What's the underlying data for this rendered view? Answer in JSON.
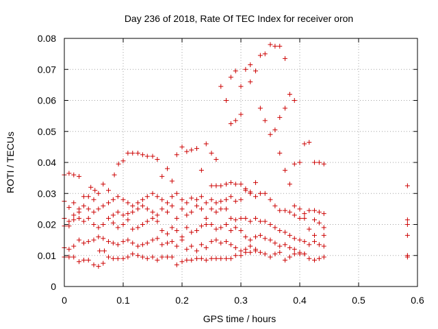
{
  "chart_data": {
    "type": "scatter",
    "title": "Day 236 of 2018, Rate Of TEC Index for receiver oron",
    "xlabel": "GPS time / hours",
    "ylabel": "ROTI / TECUs",
    "xlim": [
      0,
      0.6
    ],
    "ylim": [
      0,
      0.08
    ],
    "grid": true,
    "marker": "plus",
    "color": "#cc0000",
    "x_ticks": [
      "0",
      "0.1",
      "0.2",
      "0.3",
      "0.4",
      "0.5",
      "0.6"
    ],
    "y_ticks": [
      "0",
      "0.01",
      "0.02",
      "0.03",
      "0.04",
      "0.05",
      "0.06",
      "0.07",
      "0.08"
    ],
    "points": [
      [
        0.0,
        0.036
      ],
      [
        0.008,
        0.0365
      ],
      [
        0.016,
        0.036
      ],
      [
        0.025,
        0.0355
      ],
      [
        0.0,
        0.0275
      ],
      [
        0.008,
        0.0255
      ],
      [
        0.016,
        0.027
      ],
      [
        0.025,
        0.025
      ],
      [
        0.033,
        0.029
      ],
      [
        0.041,
        0.029
      ],
      [
        0.05,
        0.028
      ],
      [
        0.058,
        0.03
      ],
      [
        0.066,
        0.033
      ],
      [
        0.075,
        0.031
      ],
      [
        0.0,
        0.022
      ],
      [
        0.008,
        0.021
      ],
      [
        0.016,
        0.023
      ],
      [
        0.025,
        0.022
      ],
      [
        0.033,
        0.021
      ],
      [
        0.041,
        0.022
      ],
      [
        0.05,
        0.02
      ],
      [
        0.058,
        0.019
      ],
      [
        0.066,
        0.02
      ],
      [
        0.075,
        0.022
      ],
      [
        0.0,
        0.0195
      ],
      [
        0.008,
        0.0195
      ],
      [
        0.016,
        0.0215
      ],
      [
        0.025,
        0.024
      ],
      [
        0.033,
        0.026
      ],
      [
        0.041,
        0.025
      ],
      [
        0.05,
        0.024
      ],
      [
        0.058,
        0.025
      ],
      [
        0.066,
        0.026
      ],
      [
        0.075,
        0.027
      ],
      [
        0.0,
        0.0125
      ],
      [
        0.008,
        0.012
      ],
      [
        0.016,
        0.013
      ],
      [
        0.025,
        0.015
      ],
      [
        0.033,
        0.014
      ],
      [
        0.041,
        0.0145
      ],
      [
        0.05,
        0.015
      ],
      [
        0.058,
        0.016
      ],
      [
        0.066,
        0.0155
      ],
      [
        0.075,
        0.0145
      ],
      [
        0.0,
        0.0095
      ],
      [
        0.008,
        0.0095
      ],
      [
        0.016,
        0.0095
      ],
      [
        0.025,
        0.008
      ],
      [
        0.033,
        0.0085
      ],
      [
        0.041,
        0.0085
      ],
      [
        0.05,
        0.007
      ],
      [
        0.058,
        0.0065
      ],
      [
        0.066,
        0.0075
      ],
      [
        0.075,
        0.0095
      ],
      [
        0.045,
        0.032
      ],
      [
        0.052,
        0.031
      ],
      [
        0.06,
        0.0115
      ],
      [
        0.068,
        0.0115
      ],
      [
        0.085,
        0.036
      ],
      [
        0.092,
        0.0395
      ],
      [
        0.1,
        0.0405
      ],
      [
        0.108,
        0.043
      ],
      [
        0.116,
        0.043
      ],
      [
        0.125,
        0.043
      ],
      [
        0.133,
        0.0425
      ],
      [
        0.141,
        0.042
      ],
      [
        0.15,
        0.042
      ],
      [
        0.158,
        0.041
      ],
      [
        0.083,
        0.028
      ],
      [
        0.091,
        0.029
      ],
      [
        0.1,
        0.028
      ],
      [
        0.108,
        0.027
      ],
      [
        0.116,
        0.026
      ],
      [
        0.125,
        0.027
      ],
      [
        0.133,
        0.028
      ],
      [
        0.141,
        0.029
      ],
      [
        0.15,
        0.03
      ],
      [
        0.158,
        0.029
      ],
      [
        0.083,
        0.023
      ],
      [
        0.091,
        0.024
      ],
      [
        0.1,
        0.023
      ],
      [
        0.108,
        0.0235
      ],
      [
        0.116,
        0.024
      ],
      [
        0.125,
        0.025
      ],
      [
        0.133,
        0.026
      ],
      [
        0.141,
        0.025
      ],
      [
        0.15,
        0.024
      ],
      [
        0.158,
        0.023
      ],
      [
        0.083,
        0.0205
      ],
      [
        0.091,
        0.019
      ],
      [
        0.1,
        0.02
      ],
      [
        0.108,
        0.0215
      ],
      [
        0.116,
        0.0185
      ],
      [
        0.125,
        0.019
      ],
      [
        0.133,
        0.02
      ],
      [
        0.141,
        0.021
      ],
      [
        0.15,
        0.022
      ],
      [
        0.158,
        0.021
      ],
      [
        0.083,
        0.014
      ],
      [
        0.091,
        0.0135
      ],
      [
        0.1,
        0.0145
      ],
      [
        0.108,
        0.015
      ],
      [
        0.116,
        0.014
      ],
      [
        0.125,
        0.013
      ],
      [
        0.133,
        0.0135
      ],
      [
        0.141,
        0.014
      ],
      [
        0.15,
        0.015
      ],
      [
        0.158,
        0.0155
      ],
      [
        0.083,
        0.009
      ],
      [
        0.091,
        0.009
      ],
      [
        0.1,
        0.009
      ],
      [
        0.108,
        0.0095
      ],
      [
        0.116,
        0.0105
      ],
      [
        0.125,
        0.01
      ],
      [
        0.133,
        0.0095
      ],
      [
        0.141,
        0.009
      ],
      [
        0.15,
        0.0095
      ],
      [
        0.158,
        0.0085
      ],
      [
        0.166,
        0.0355
      ],
      [
        0.175,
        0.038
      ],
      [
        0.183,
        0.034
      ],
      [
        0.191,
        0.0425
      ],
      [
        0.2,
        0.045
      ],
      [
        0.208,
        0.0435
      ],
      [
        0.216,
        0.044
      ],
      [
        0.225,
        0.0445
      ],
      [
        0.233,
        0.0375
      ],
      [
        0.241,
        0.046
      ],
      [
        0.166,
        0.028
      ],
      [
        0.175,
        0.027
      ],
      [
        0.183,
        0.029
      ],
      [
        0.191,
        0.03
      ],
      [
        0.2,
        0.028
      ],
      [
        0.208,
        0.027
      ],
      [
        0.216,
        0.0285
      ],
      [
        0.225,
        0.028
      ],
      [
        0.233,
        0.029
      ],
      [
        0.241,
        0.027
      ],
      [
        0.166,
        0.025
      ],
      [
        0.175,
        0.024
      ],
      [
        0.183,
        0.026
      ],
      [
        0.191,
        0.022
      ],
      [
        0.2,
        0.025
      ],
      [
        0.208,
        0.023
      ],
      [
        0.216,
        0.024
      ],
      [
        0.225,
        0.026
      ],
      [
        0.233,
        0.025
      ],
      [
        0.241,
        0.022
      ],
      [
        0.166,
        0.018
      ],
      [
        0.175,
        0.017
      ],
      [
        0.183,
        0.019
      ],
      [
        0.191,
        0.018
      ],
      [
        0.2,
        0.016
      ],
      [
        0.208,
        0.019
      ],
      [
        0.216,
        0.0175
      ],
      [
        0.225,
        0.018
      ],
      [
        0.233,
        0.0195
      ],
      [
        0.241,
        0.02
      ],
      [
        0.166,
        0.0135
      ],
      [
        0.175,
        0.014
      ],
      [
        0.183,
        0.0145
      ],
      [
        0.191,
        0.013
      ],
      [
        0.2,
        0.015
      ],
      [
        0.208,
        0.012
      ],
      [
        0.216,
        0.013
      ],
      [
        0.225,
        0.0115
      ],
      [
        0.233,
        0.0135
      ],
      [
        0.241,
        0.0125
      ],
      [
        0.166,
        0.0095
      ],
      [
        0.175,
        0.0095
      ],
      [
        0.183,
        0.0095
      ],
      [
        0.191,
        0.007
      ],
      [
        0.2,
        0.008
      ],
      [
        0.208,
        0.0085
      ],
      [
        0.216,
        0.0085
      ],
      [
        0.225,
        0.009
      ],
      [
        0.233,
        0.009
      ],
      [
        0.241,
        0.0085
      ],
      [
        0.25,
        0.043
      ],
      [
        0.258,
        0.041
      ],
      [
        0.266,
        0.0645
      ],
      [
        0.275,
        0.06
      ],
      [
        0.283,
        0.0675
      ],
      [
        0.291,
        0.0695
      ],
      [
        0.3,
        0.0645
      ],
      [
        0.308,
        0.07
      ],
      [
        0.316,
        0.0715
      ],
      [
        0.325,
        0.0695
      ],
      [
        0.283,
        0.0525
      ],
      [
        0.291,
        0.0535
      ],
      [
        0.3,
        0.0555
      ],
      [
        0.316,
        0.066
      ],
      [
        0.333,
        0.0745
      ],
      [
        0.341,
        0.075
      ],
      [
        0.35,
        0.078
      ],
      [
        0.358,
        0.0775
      ],
      [
        0.366,
        0.0775
      ],
      [
        0.375,
        0.0735
      ],
      [
        0.383,
        0.062
      ],
      [
        0.391,
        0.06
      ],
      [
        0.375,
        0.0575
      ],
      [
        0.366,
        0.0545
      ],
      [
        0.358,
        0.0505
      ],
      [
        0.35,
        0.049
      ],
      [
        0.341,
        0.0535
      ],
      [
        0.333,
        0.0575
      ],
      [
        0.25,
        0.0325
      ],
      [
        0.258,
        0.0325
      ],
      [
        0.266,
        0.0325
      ],
      [
        0.275,
        0.033
      ],
      [
        0.283,
        0.0335
      ],
      [
        0.291,
        0.033
      ],
      [
        0.3,
        0.033
      ],
      [
        0.308,
        0.0315
      ],
      [
        0.316,
        0.03
      ],
      [
        0.325,
        0.0335
      ],
      [
        0.25,
        0.028
      ],
      [
        0.258,
        0.027
      ],
      [
        0.266,
        0.0275
      ],
      [
        0.275,
        0.028
      ],
      [
        0.283,
        0.029
      ],
      [
        0.291,
        0.0275
      ],
      [
        0.3,
        0.028
      ],
      [
        0.308,
        0.031
      ],
      [
        0.316,
        0.0305
      ],
      [
        0.325,
        0.029
      ],
      [
        0.25,
        0.025
      ],
      [
        0.258,
        0.024
      ],
      [
        0.266,
        0.025
      ],
      [
        0.275,
        0.025
      ],
      [
        0.283,
        0.022
      ],
      [
        0.291,
        0.0215
      ],
      [
        0.3,
        0.022
      ],
      [
        0.308,
        0.022
      ],
      [
        0.316,
        0.021
      ],
      [
        0.325,
        0.022
      ],
      [
        0.25,
        0.02
      ],
      [
        0.258,
        0.0185
      ],
      [
        0.266,
        0.019
      ],
      [
        0.275,
        0.02
      ],
      [
        0.283,
        0.018
      ],
      [
        0.291,
        0.019
      ],
      [
        0.3,
        0.018
      ],
      [
        0.308,
        0.016
      ],
      [
        0.316,
        0.015
      ],
      [
        0.325,
        0.016
      ],
      [
        0.25,
        0.0145
      ],
      [
        0.258,
        0.015
      ],
      [
        0.266,
        0.014
      ],
      [
        0.275,
        0.0145
      ],
      [
        0.283,
        0.0135
      ],
      [
        0.291,
        0.0125
      ],
      [
        0.3,
        0.0115
      ],
      [
        0.308,
        0.012
      ],
      [
        0.316,
        0.013
      ],
      [
        0.325,
        0.012
      ],
      [
        0.25,
        0.009
      ],
      [
        0.258,
        0.009
      ],
      [
        0.266,
        0.009
      ],
      [
        0.275,
        0.009
      ],
      [
        0.283,
        0.009
      ],
      [
        0.291,
        0.01
      ],
      [
        0.3,
        0.01
      ],
      [
        0.308,
        0.011
      ],
      [
        0.316,
        0.011
      ],
      [
        0.325,
        0.0115
      ],
      [
        0.333,
        0.03
      ],
      [
        0.341,
        0.03
      ],
      [
        0.35,
        0.028
      ],
      [
        0.358,
        0.026
      ],
      [
        0.366,
        0.0245
      ],
      [
        0.375,
        0.0245
      ],
      [
        0.383,
        0.024
      ],
      [
        0.391,
        0.023
      ],
      [
        0.4,
        0.022
      ],
      [
        0.408,
        0.022
      ],
      [
        0.333,
        0.021
      ],
      [
        0.341,
        0.021
      ],
      [
        0.35,
        0.02
      ],
      [
        0.358,
        0.019
      ],
      [
        0.366,
        0.018
      ],
      [
        0.375,
        0.0175
      ],
      [
        0.383,
        0.0165
      ],
      [
        0.391,
        0.0155
      ],
      [
        0.4,
        0.015
      ],
      [
        0.408,
        0.0145
      ],
      [
        0.333,
        0.0165
      ],
      [
        0.341,
        0.0155
      ],
      [
        0.35,
        0.015
      ],
      [
        0.358,
        0.014
      ],
      [
        0.366,
        0.013
      ],
      [
        0.375,
        0.0135
      ],
      [
        0.383,
        0.0125
      ],
      [
        0.391,
        0.012
      ],
      [
        0.4,
        0.011
      ],
      [
        0.408,
        0.0105
      ],
      [
        0.333,
        0.011
      ],
      [
        0.341,
        0.0105
      ],
      [
        0.35,
        0.0095
      ],
      [
        0.358,
        0.0105
      ],
      [
        0.366,
        0.011
      ],
      [
        0.375,
        0.0085
      ],
      [
        0.383,
        0.0095
      ],
      [
        0.391,
        0.0105
      ],
      [
        0.4,
        0.0105
      ],
      [
        0.408,
        0.0105
      ],
      [
        0.366,
        0.043
      ],
      [
        0.375,
        0.0375
      ],
      [
        0.383,
        0.033
      ],
      [
        0.391,
        0.0395
      ],
      [
        0.4,
        0.04
      ],
      [
        0.408,
        0.046
      ],
      [
        0.416,
        0.0465
      ],
      [
        0.425,
        0.04
      ],
      [
        0.433,
        0.04
      ],
      [
        0.441,
        0.0395
      ],
      [
        0.391,
        0.026
      ],
      [
        0.4,
        0.025
      ],
      [
        0.408,
        0.0235
      ],
      [
        0.416,
        0.0245
      ],
      [
        0.425,
        0.0245
      ],
      [
        0.433,
        0.024
      ],
      [
        0.441,
        0.0235
      ],
      [
        0.416,
        0.0185
      ],
      [
        0.425,
        0.0215
      ],
      [
        0.433,
        0.0205
      ],
      [
        0.441,
        0.019
      ],
      [
        0.416,
        0.0135
      ],
      [
        0.425,
        0.0145
      ],
      [
        0.433,
        0.0135
      ],
      [
        0.441,
        0.013
      ],
      [
        0.416,
        0.009
      ],
      [
        0.425,
        0.0085
      ],
      [
        0.433,
        0.009
      ],
      [
        0.441,
        0.0095
      ],
      [
        0.425,
        0.0165
      ],
      [
        0.441,
        0.0165
      ],
      [
        0.583,
        0.0325
      ],
      [
        0.583,
        0.0215
      ],
      [
        0.583,
        0.02
      ],
      [
        0.583,
        0.0165
      ],
      [
        0.583,
        0.01
      ],
      [
        0.583,
        0.0095
      ]
    ]
  }
}
